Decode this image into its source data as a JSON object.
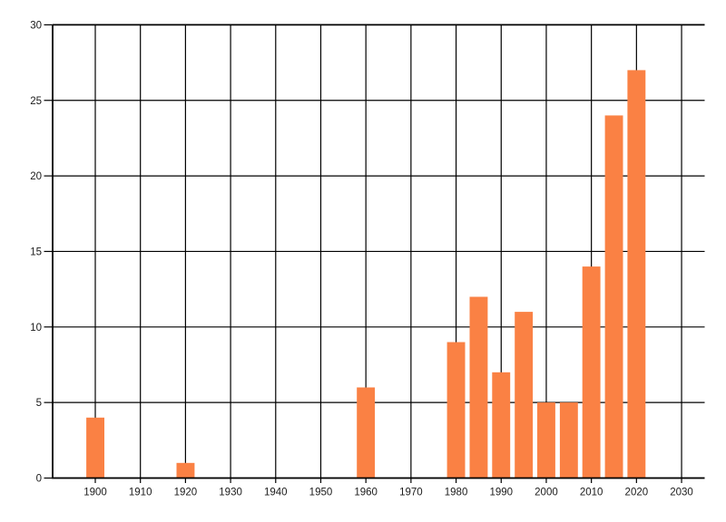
{
  "chart_data": {
    "type": "bar",
    "title": "",
    "xlabel": "",
    "ylabel": "",
    "x": [
      1900,
      1920,
      1960,
      1980,
      1985,
      1990,
      1995,
      2000,
      2005,
      2010,
      2015,
      2020
    ],
    "values": [
      4,
      1,
      6,
      9,
      12,
      7,
      11,
      5,
      5,
      14,
      24,
      27
    ],
    "x_ticks": [
      1900,
      1910,
      1920,
      1930,
      1940,
      1950,
      1960,
      1970,
      1980,
      1990,
      2000,
      2010,
      2020,
      2030
    ],
    "x_tick_labels": [
      "1900",
      "1910",
      "1920",
      "1930",
      "1940",
      "1950",
      "1960",
      "1970",
      "1980",
      "1990",
      "2000",
      "2010",
      "2020",
      "2030"
    ],
    "y_ticks": [
      0,
      5,
      10,
      15,
      20,
      25,
      30
    ],
    "y_tick_labels": [
      "0",
      "5",
      "10",
      "15",
      "20",
      "25",
      "30"
    ],
    "xlim": [
      1891,
      2035.5
    ],
    "ylim": [
      0,
      30
    ],
    "grid": true,
    "legend_visible": false,
    "bar_width_years": 4,
    "colors": {
      "bar": "#FA8144",
      "grid_line": "#000000",
      "axis_line": "#000000",
      "tick_label": "#1A1A1A",
      "background": "#FFFFFF"
    }
  }
}
